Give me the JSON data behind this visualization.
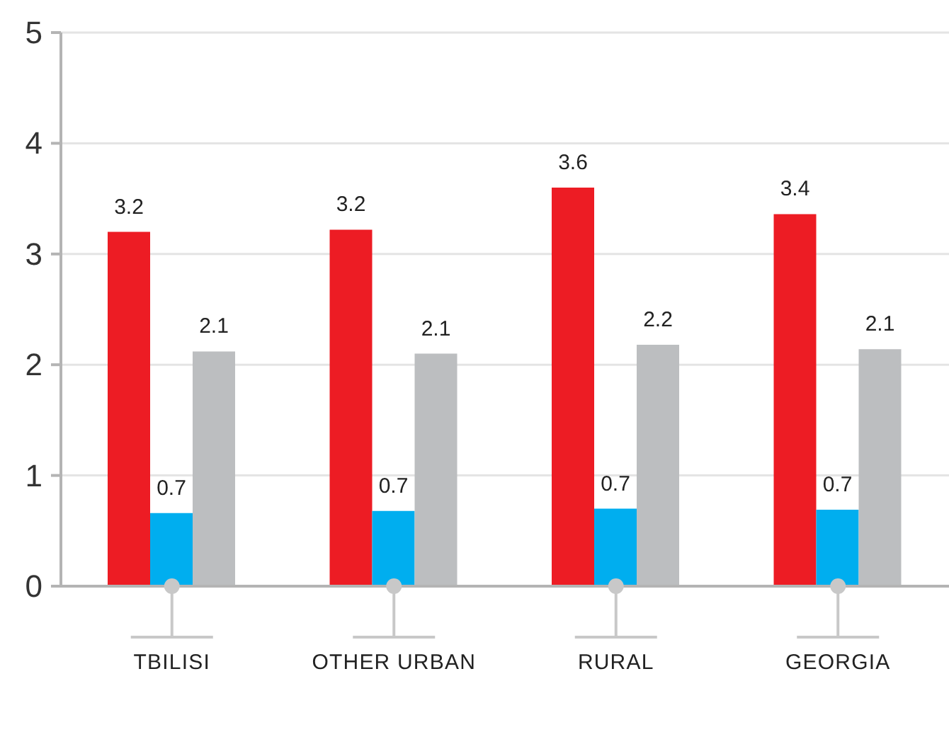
{
  "chart_data": {
    "type": "bar",
    "categories": [
      "TBILISI",
      "OTHER URBAN",
      "RURAL",
      "GEORGIA"
    ],
    "series": [
      {
        "color": "#ed1c24",
        "values": [
          3.2,
          3.22,
          3.6,
          3.36
        ],
        "value_labels": [
          "3.2",
          "3.2",
          "3.6",
          "3.4"
        ]
      },
      {
        "color": "#00aeef",
        "values": [
          0.66,
          0.68,
          0.7,
          0.69
        ],
        "value_labels": [
          "0.7",
          "0.7",
          "0.7",
          "0.7"
        ]
      },
      {
        "color": "#bcbec0",
        "values": [
          2.12,
          2.1,
          2.18,
          2.14
        ],
        "value_labels": [
          "2.1",
          "2.1",
          "2.2",
          "2.1"
        ]
      }
    ],
    "ylim": [
      0,
      5
    ],
    "yticks": [
      0,
      1,
      2,
      3,
      4,
      5
    ],
    "grid": "y"
  }
}
